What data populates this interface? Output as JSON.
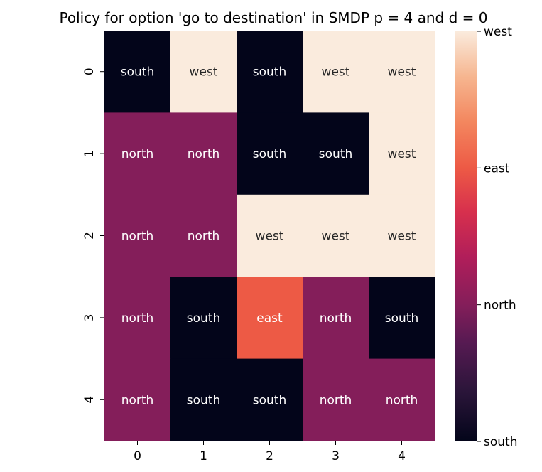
{
  "chart_data": {
    "type": "heatmap",
    "title": "Policy for option 'go to destination' in SMDP p = 4 and d = 0",
    "xlabel": "",
    "ylabel": "",
    "x_ticks": [
      "0",
      "1",
      "2",
      "3",
      "4"
    ],
    "y_ticks": [
      "0",
      "1",
      "2",
      "3",
      "4"
    ],
    "cells": [
      [
        "south",
        "west",
        "south",
        "west",
        "west"
      ],
      [
        "north",
        "north",
        "south",
        "south",
        "west"
      ],
      [
        "north",
        "north",
        "west",
        "west",
        "west"
      ],
      [
        "north",
        "south",
        "east",
        "north",
        "south"
      ],
      [
        "north",
        "south",
        "south",
        "north",
        "north"
      ]
    ],
    "colorbar": {
      "ticks": [
        "south",
        "north",
        "east",
        "west"
      ],
      "range": [
        0,
        3
      ],
      "colormap": "rocket"
    },
    "category_colors": {
      "south": "#03051a",
      "north": "#841e5a",
      "east": "#ed5a45",
      "west": "#faebdd"
    },
    "label_colors": {
      "south": "#ffffff",
      "north": "#ffffff",
      "east": "#ffffff",
      "west": "#262626"
    }
  }
}
